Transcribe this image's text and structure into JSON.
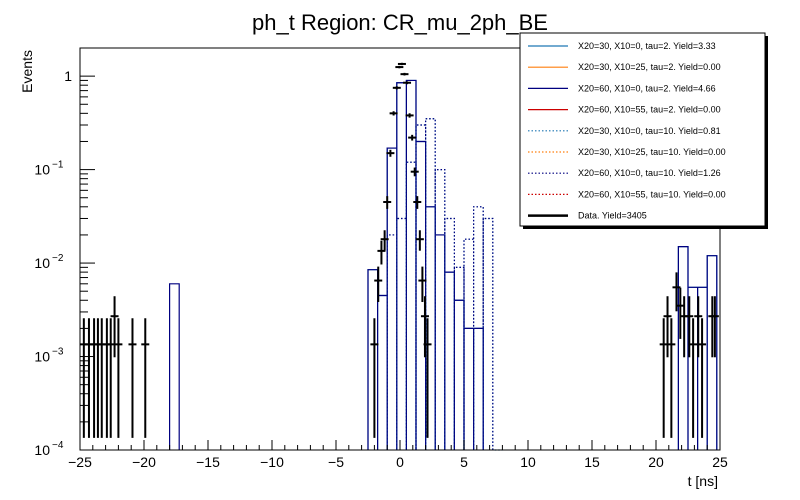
{
  "chart_data": {
    "type": "line",
    "title": "ph_t Region: CR_mu_2ph_BE",
    "xlabel": "t [ns]",
    "ylabel": "Events",
    "xlim": [
      -25,
      25
    ],
    "ylim": [
      0.0001,
      2
    ],
    "yscale": "log",
    "grid": false,
    "legend_position": "top-right",
    "x_ticks": [
      {
        "v": -25,
        "label": "−25"
      },
      {
        "v": -20,
        "label": "−20"
      },
      {
        "v": -15,
        "label": "−15"
      },
      {
        "v": -10,
        "label": "−10"
      },
      {
        "v": -5,
        "label": "−5"
      },
      {
        "v": 0,
        "label": "0"
      },
      {
        "v": 5,
        "label": "5"
      },
      {
        "v": 10,
        "label": "10"
      },
      {
        "v": 15,
        "label": "15"
      },
      {
        "v": 20,
        "label": "20"
      },
      {
        "v": 25,
        "label": "25"
      }
    ],
    "y_ticks": [
      {
        "v": 1,
        "base": "1",
        "exp": ""
      },
      {
        "v": 0.1,
        "base": "10",
        "exp": "−1"
      },
      {
        "v": 0.01,
        "base": "10",
        "exp": "−2"
      },
      {
        "v": 0.001,
        "base": "10",
        "exp": "−3"
      },
      {
        "v": 0.0001,
        "base": "10",
        "exp": "−4"
      }
    ],
    "series": [
      {
        "name": "X20=30, X10=0, tau=2. Yield=3.33",
        "color": "#1f77b4",
        "dash": "solid",
        "bins": [
          [
            -2.5,
            -1.75,
            0.0085
          ],
          [
            -1.75,
            -1.0,
            0.0045
          ],
          [
            -1.0,
            -0.25,
            0.17
          ],
          [
            -0.25,
            0.5,
            0.85
          ],
          [
            0.5,
            1.25,
            0.9
          ],
          [
            1.25,
            2.0,
            0.2
          ],
          [
            2.0,
            2.75,
            0.04
          ],
          [
            2.75,
            3.5,
            0.02
          ],
          [
            3.5,
            4.25,
            0.008
          ],
          [
            4.25,
            5.0,
            0.004
          ],
          [
            5.0,
            5.75,
            0.002
          ],
          [
            5.75,
            6.5,
            0.002
          ],
          [
            21.75,
            22.5,
            0.015
          ],
          [
            22.5,
            23.25,
            0.0055
          ],
          [
            23.25,
            24.0,
            0.0055
          ],
          [
            24.0,
            24.75,
            0.012
          ]
        ]
      },
      {
        "name": "X20=30, X10=25, tau=2. Yield=0.00",
        "color": "#ff7f0e",
        "dash": "solid",
        "bins": []
      },
      {
        "name": "X20=60, X10=0, tau=2. Yield=4.66",
        "color": "#000080",
        "dash": "solid",
        "bins": [
          [
            -18.0,
            -17.25,
            0.006
          ],
          [
            -2.5,
            -1.75,
            0.0085
          ],
          [
            -1.75,
            -1.0,
            0.0045
          ],
          [
            -1.0,
            -0.25,
            0.17
          ],
          [
            -0.25,
            0.5,
            0.85
          ],
          [
            0.5,
            1.25,
            0.9
          ],
          [
            1.25,
            2.0,
            0.2
          ],
          [
            2.0,
            2.75,
            0.04
          ],
          [
            2.75,
            3.5,
            0.02
          ],
          [
            3.5,
            4.25,
            0.008
          ],
          [
            4.25,
            5.0,
            0.004
          ],
          [
            5.0,
            5.75,
            0.002
          ],
          [
            5.75,
            6.5,
            0.002
          ],
          [
            21.75,
            22.5,
            0.015
          ],
          [
            22.5,
            23.25,
            0.0055
          ],
          [
            23.25,
            24.0,
            0.0055
          ],
          [
            24.0,
            24.75,
            0.012
          ]
        ]
      },
      {
        "name": "X20=60, X10=55, tau=2. Yield=0.00",
        "color": "#cc0000",
        "dash": "solid",
        "bins": []
      },
      {
        "name": "X20=30, X10=0, tau=10. Yield=0.81",
        "color": "#1f77b4",
        "dash": "dotted",
        "bins": [
          [
            -1.0,
            -0.25,
            0.02
          ],
          [
            -0.25,
            0.5,
            0.03
          ],
          [
            0.5,
            1.25,
            0.12
          ],
          [
            1.25,
            2.0,
            0.3
          ],
          [
            2.0,
            2.75,
            0.35
          ],
          [
            2.75,
            3.5,
            0.1
          ],
          [
            3.5,
            4.25,
            0.03
          ],
          [
            4.25,
            5.0,
            0.009
          ],
          [
            5.0,
            5.75,
            0.018
          ],
          [
            5.75,
            6.5,
            0.04
          ],
          [
            6.5,
            7.25,
            0.03
          ],
          [
            7.25,
            8.0,
            0.0001
          ]
        ]
      },
      {
        "name": "X20=30, X10=25, tau=10. Yield=0.00",
        "color": "#ff7f0e",
        "dash": "dotted",
        "bins": []
      },
      {
        "name": "X20=60, X10=0, tau=10. Yield=1.26",
        "color": "#000080",
        "dash": "dotted",
        "bins": [
          [
            -1.0,
            -0.25,
            0.02
          ],
          [
            -0.25,
            0.5,
            0.03
          ],
          [
            0.5,
            1.25,
            0.12
          ],
          [
            1.25,
            2.0,
            0.3
          ],
          [
            2.0,
            2.75,
            0.35
          ],
          [
            2.75,
            3.5,
            0.1
          ],
          [
            3.5,
            4.25,
            0.03
          ],
          [
            4.25,
            5.0,
            0.009
          ],
          [
            5.0,
            5.75,
            0.018
          ],
          [
            5.75,
            6.5,
            0.04
          ],
          [
            6.5,
            7.25,
            0.03
          ]
        ]
      },
      {
        "name": "X20=60, X10=55, tau=10. Yield=0.00",
        "color": "#cc0000",
        "dash": "dotted",
        "bins": []
      }
    ],
    "data_points": {
      "name": "Data. Yield=3405",
      "color": "#000000",
      "points": [
        [
          -24.7,
          0.00135
        ],
        [
          -24.3,
          0.00135
        ],
        [
          -23.9,
          0.00135
        ],
        [
          -23.6,
          0.00135
        ],
        [
          -23.3,
          0.00135
        ],
        [
          -22.9,
          0.00135
        ],
        [
          -22.6,
          0.00135
        ],
        [
          -22.3,
          0.0027
        ],
        [
          -22.0,
          0.00135
        ],
        [
          -20.9,
          0.00135
        ],
        [
          -19.9,
          0.00135
        ],
        [
          -2.0,
          0.00135
        ],
        [
          -1.7,
          0.0065
        ],
        [
          -1.45,
          0.0135
        ],
        [
          -1.2,
          0.018
        ],
        [
          -1.0,
          0.045
        ],
        [
          -0.75,
          0.15
        ],
        [
          -0.5,
          0.4
        ],
        [
          -0.25,
          0.75
        ],
        [
          -0.05,
          1.25
        ],
        [
          0.15,
          1.35
        ],
        [
          0.35,
          1.05
        ],
        [
          0.55,
          0.85
        ],
        [
          0.75,
          0.38
        ],
        [
          0.95,
          0.22
        ],
        [
          1.15,
          0.095
        ],
        [
          1.35,
          0.045
        ],
        [
          1.55,
          0.018
        ],
        [
          1.75,
          0.0065
        ],
        [
          1.95,
          0.0027
        ],
        [
          2.15,
          0.00135
        ],
        [
          20.6,
          0.00135
        ],
        [
          20.9,
          0.0027
        ],
        [
          21.2,
          0.00135
        ],
        [
          21.6,
          0.0055
        ],
        [
          21.9,
          0.0035
        ],
        [
          22.2,
          0.0027
        ],
        [
          22.6,
          0.0027
        ],
        [
          22.9,
          0.00135
        ],
        [
          23.3,
          0.0027
        ],
        [
          23.6,
          0.00135
        ],
        [
          24.4,
          0.0027
        ],
        [
          24.6,
          0.0027
        ]
      ]
    }
  }
}
